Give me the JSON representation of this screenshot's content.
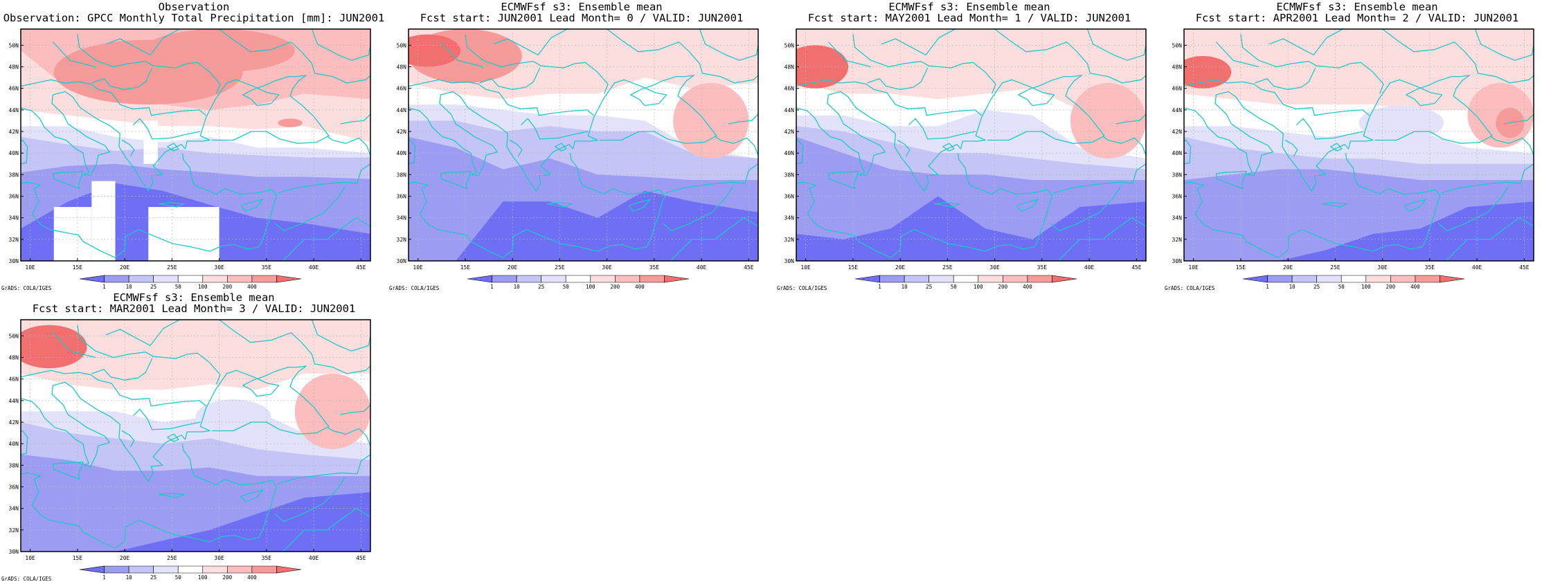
{
  "colors": {
    "levels": [
      "#6f6ff5",
      "#9c9cf3",
      "#c4c4f7",
      "#e2e2fb",
      "#ffffff",
      "#fddede",
      "#fbbdbd",
      "#f79a9a",
      "#f26f6f"
    ],
    "coastline": "#1ec8c8",
    "grid": "#b8b8b8"
  },
  "legend_ticks": [
    "1",
    "10",
    "25",
    "50",
    "100",
    "200",
    "400"
  ],
  "credit": "GrADS: COLA/IGES",
  "chart_data": [
    {
      "type": "heatmap",
      "title": "Observation",
      "subtitle": "Observation: GPCC Monthly Total Precipitation [mm]: JUN2001",
      "xticks": [
        "10E",
        "15E",
        "20E",
        "25E",
        "30E",
        "35E",
        "40E",
        "45E"
      ],
      "yticks": [
        "30N",
        "32N",
        "34N",
        "36N",
        "38N",
        "40N",
        "42N",
        "44N",
        "46N",
        "48N",
        "50N"
      ],
      "xlim": [
        9,
        46
      ],
      "ylim": [
        30,
        51.5
      ],
      "grid": true,
      "bands": [
        {
          "level": 1,
          "lat": [
            33.0,
            35.5,
            37.2,
            36.5,
            35.2,
            34.0,
            33.5,
            32.5
          ]
        },
        {
          "level": 2,
          "lat": [
            38.2,
            38.8,
            39.0,
            38.5,
            38.2,
            37.8,
            37.8,
            37.6
          ]
        },
        {
          "level": 3,
          "lat": [
            41.5,
            40.8,
            40.2,
            40.5,
            40.0,
            39.8,
            39.6,
            39.6
          ]
        },
        {
          "level": 4,
          "lat": [
            42.5,
            42.5,
            41.5,
            41.0,
            41.5,
            40.5,
            40.5,
            40.0
          ]
        },
        {
          "level": 5,
          "lat": [
            44.0,
            43.5,
            43.0,
            42.5,
            42.5,
            42.2,
            42.5,
            41.0
          ]
        },
        {
          "level": 6,
          "lat": [
            49.5,
            46.0,
            45.0,
            44.5,
            44.0,
            44.5,
            45.5,
            45.0
          ]
        }
      ],
      "blobs": [
        {
          "level": 7,
          "lon": 22.5,
          "lat": 47.5,
          "rlon": 10,
          "rlat": 3
        },
        {
          "level": 7,
          "lon": 30,
          "lat": 49.5,
          "rlon": 8,
          "rlat": 2
        },
        {
          "level": 7,
          "lon": 37.5,
          "lat": 42.8,
          "rlon": 1.3,
          "rlat": 0.4
        }
      ],
      "masks": [
        {
          "lon": [
            16.5,
            19
          ],
          "lat": [
            30,
            37.4
          ]
        },
        {
          "lon": [
            12.5,
            16.5
          ],
          "lat": [
            30,
            35
          ]
        },
        {
          "lon": [
            22.5,
            30
          ],
          "lat": [
            30,
            35
          ]
        },
        {
          "lon": [
            22,
            23.5
          ],
          "lat": [
            39,
            43
          ]
        }
      ]
    },
    {
      "type": "heatmap",
      "title": "ECMWFsf s3: Ensemble mean",
      "subtitle": "Fcst start: JUN2001   Lead Month= 0 / VALID: JUN2001",
      "xticks": [
        "10E",
        "15E",
        "20E",
        "25E",
        "30E",
        "35E",
        "40E",
        "45E"
      ],
      "yticks": [
        "30N",
        "32N",
        "34N",
        "36N",
        "38N",
        "40N",
        "42N",
        "44N",
        "46N",
        "48N",
        "50N"
      ],
      "xlim": [
        9,
        46
      ],
      "ylim": [
        30,
        51.5
      ],
      "grid": true,
      "bands": [
        {
          "level": 1,
          "lat": [
            30.0,
            30.0,
            35.5,
            35.5,
            34.0,
            36.5,
            35.5,
            34.5
          ]
        },
        {
          "level": 2,
          "lat": [
            41.5,
            40.5,
            38.5,
            39.5,
            38.0,
            37.8,
            37.5,
            37.5
          ]
        },
        {
          "level": 3,
          "lat": [
            43.0,
            43.0,
            42.0,
            42.5,
            42.0,
            42.0,
            40.0,
            39.5
          ]
        },
        {
          "level": 4,
          "lat": [
            44.5,
            44.5,
            44.0,
            43.5,
            43.5,
            43.0,
            40.5,
            39.5
          ]
        },
        {
          "level": 5,
          "lat": [
            46.5,
            45.5,
            45.0,
            45.5,
            45.5,
            47.0,
            46.0,
            46.5
          ]
        },
        {
          "level": 6,
          "lat": [
            51.5,
            51.5,
            51.5,
            51.5,
            51.5,
            51.5,
            51.5,
            51.5
          ]
        }
      ],
      "blobs": [
        {
          "level": 6,
          "lon": 41,
          "lat": 43,
          "rlon": 4,
          "rlat": 3.5
        },
        {
          "level": 7,
          "lon": 15,
          "lat": 49,
          "rlon": 6,
          "rlat": 2.5
        },
        {
          "level": 8,
          "lon": 11,
          "lat": 49.5,
          "rlon": 3.5,
          "rlat": 1.5
        }
      ],
      "masks": []
    },
    {
      "type": "heatmap",
      "title": "ECMWFsf s3: Ensemble mean",
      "subtitle": "Fcst start: MAY2001   Lead Month= 1 / VALID: JUN2001",
      "xticks": [
        "10E",
        "15E",
        "20E",
        "25E",
        "30E",
        "35E",
        "40E",
        "45E"
      ],
      "yticks": [
        "30N",
        "32N",
        "34N",
        "36N",
        "38N",
        "40N",
        "42N",
        "44N",
        "46N",
        "48N",
        "50N"
      ],
      "xlim": [
        9,
        46
      ],
      "ylim": [
        30,
        51.5
      ],
      "grid": true,
      "bands": [
        {
          "level": 1,
          "lat": [
            32.5,
            32.0,
            33.0,
            36.0,
            33.0,
            32.0,
            35.0,
            35.5
          ]
        },
        {
          "level": 2,
          "lat": [
            41.5,
            40.0,
            38.5,
            38.0,
            38.0,
            37.5,
            37.5,
            37.5
          ]
        },
        {
          "level": 3,
          "lat": [
            42.5,
            42.0,
            41.0,
            40.0,
            40.0,
            39.5,
            39.0,
            38.5
          ]
        },
        {
          "level": 4,
          "lat": [
            43.5,
            43.5,
            42.5,
            42.5,
            44.0,
            43.5,
            40.5,
            39.5
          ]
        },
        {
          "level": 5,
          "lat": [
            46.5,
            45.5,
            45.5,
            45.0,
            45.5,
            46.0,
            44.0,
            43.0
          ]
        },
        {
          "level": 6,
          "lat": [
            51.5,
            51.5,
            51.5,
            51.5,
            51.5,
            51.5,
            51.5,
            51.5
          ]
        }
      ],
      "blobs": [
        {
          "level": 6,
          "lon": 42,
          "lat": 43,
          "rlon": 4,
          "rlat": 3.5
        },
        {
          "level": 8,
          "lon": 11,
          "lat": 48,
          "rlon": 3.5,
          "rlat": 2
        }
      ],
      "masks": []
    },
    {
      "type": "heatmap",
      "title": "ECMWFsf s3: Ensemble mean",
      "subtitle": "Fcst start: APR2001   Lead Month= 2 / VALID: JUN2001",
      "xticks": [
        "10E",
        "15E",
        "20E",
        "25E",
        "30E",
        "35E",
        "40E",
        "45E"
      ],
      "yticks": [
        "30N",
        "32N",
        "34N",
        "36N",
        "38N",
        "40N",
        "42N",
        "44N",
        "46N",
        "48N",
        "50N"
      ],
      "xlim": [
        9,
        46
      ],
      "ylim": [
        30,
        51.5
      ],
      "grid": true,
      "bands": [
        {
          "level": 1,
          "lat": [
            30.0,
            30.0,
            30.0,
            31.0,
            32.5,
            33.0,
            35.0,
            35.5
          ]
        },
        {
          "level": 2,
          "lat": [
            37.5,
            38.0,
            38.5,
            38.5,
            38.0,
            37.5,
            37.5,
            37.5
          ]
        },
        {
          "level": 3,
          "lat": [
            41.5,
            40.5,
            40.0,
            39.5,
            39.5,
            39.0,
            39.0,
            39.0
          ]
        },
        {
          "level": 4,
          "lat": [
            42.5,
            42.5,
            42.0,
            41.5,
            42.0,
            42.0,
            40.5,
            40.0
          ]
        },
        {
          "level": 5,
          "lat": [
            45.5,
            45.0,
            44.5,
            44.5,
            44.5,
            44.0,
            44.0,
            43.5
          ]
        },
        {
          "level": 6,
          "lat": [
            51.5,
            51.5,
            51.5,
            51.5,
            51.5,
            51.5,
            51.5,
            51.5
          ]
        }
      ],
      "blobs": [
        {
          "level": 3,
          "lon": 32,
          "lat": 42.8,
          "rlon": 4.5,
          "rlat": 1.6
        },
        {
          "level": 6,
          "lon": 42.5,
          "lat": 43.5,
          "rlon": 3.5,
          "rlat": 3
        },
        {
          "level": 7,
          "lon": 43.5,
          "lat": 42.8,
          "rlon": 1.5,
          "rlat": 1.4
        },
        {
          "level": 8,
          "lon": 11,
          "lat": 47.5,
          "rlon": 3,
          "rlat": 1.5
        }
      ],
      "masks": []
    },
    {
      "type": "heatmap",
      "title": "ECMWFsf s3: Ensemble mean",
      "subtitle": "Fcst start: MAR2001   Lead Month= 3 / VALID: JUN2001",
      "xticks": [
        "10E",
        "15E",
        "20E",
        "25E",
        "30E",
        "35E",
        "40E",
        "45E"
      ],
      "yticks": [
        "30N",
        "32N",
        "34N",
        "36N",
        "38N",
        "40N",
        "42N",
        "44N",
        "46N",
        "48N",
        "50N"
      ],
      "xlim": [
        9,
        46
      ],
      "ylim": [
        30,
        51.5
      ],
      "grid": true,
      "bands": [
        {
          "level": 1,
          "lat": [
            30.0,
            30.0,
            30.0,
            31.0,
            32.0,
            33.5,
            35.0,
            35.5
          ]
        },
        {
          "level": 2,
          "lat": [
            39.0,
            38.5,
            37.5,
            37.5,
            37.8,
            37.0,
            37.0,
            37.0
          ]
        },
        {
          "level": 3,
          "lat": [
            42.0,
            41.0,
            40.5,
            40.0,
            40.5,
            39.5,
            39.0,
            38.5
          ]
        },
        {
          "level": 4,
          "lat": [
            43.0,
            43.0,
            43.0,
            42.0,
            42.5,
            43.0,
            41.0,
            40.0
          ]
        },
        {
          "level": 5,
          "lat": [
            46.5,
            45.5,
            45.0,
            45.0,
            45.5,
            45.0,
            46.5,
            46.5
          ]
        },
        {
          "level": 6,
          "lat": [
            51.5,
            51.5,
            51.5,
            51.5,
            51.5,
            51.5,
            51.5,
            51.5
          ]
        }
      ],
      "blobs": [
        {
          "level": 3,
          "lon": 31.5,
          "lat": 42.5,
          "rlon": 4,
          "rlat": 1.6
        },
        {
          "level": 6,
          "lon": 42,
          "lat": 43,
          "rlon": 4,
          "rlat": 3.5
        },
        {
          "level": 8,
          "lon": 12,
          "lat": 49,
          "rlon": 4,
          "rlat": 2
        }
      ],
      "masks": []
    }
  ]
}
